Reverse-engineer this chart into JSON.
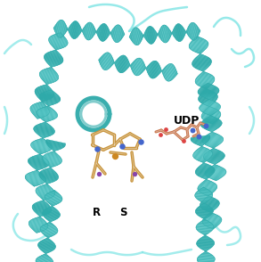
{
  "background_color": "#ffffff",
  "protein_color_main": "#5dd8d8",
  "protein_color_light": "#88e8e8",
  "protein_color_dark": "#2eaaaa",
  "protein_color_shadow": "#1a8888",
  "loop_color": "#7de4e4",
  "drug_color": "#c8943c",
  "drug_color2": "#d4a850",
  "udp_color": "#c87850",
  "blue_atom": "#4466cc",
  "purple_atom": "#8844aa",
  "red_atom": "#cc3333",
  "orange_atom": "#cc8822",
  "label_udp": "UDP",
  "label_r": "R",
  "label_s": "S",
  "fig_width": 2.93,
  "fig_height": 2.94,
  "dpi": 100
}
